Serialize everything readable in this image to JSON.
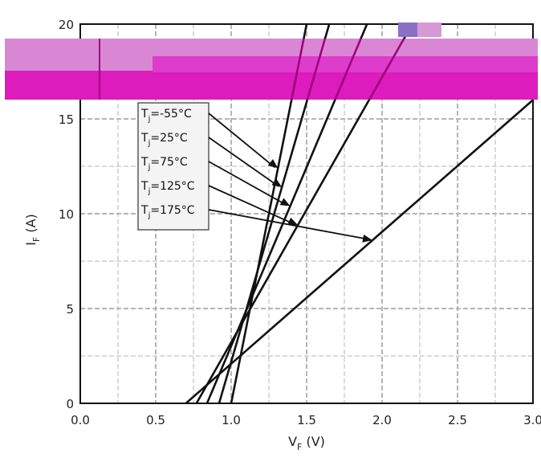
{
  "chart_data": {
    "type": "line",
    "xlabel": "V",
    "xlabel_sub": "F",
    "xlabel_unit": " (V)",
    "ylabel": "I",
    "ylabel_sub": "F",
    "ylabel_unit": " (A)",
    "xlim": [
      0,
      3
    ],
    "ylim": [
      0,
      20
    ],
    "x_ticks": [
      0,
      0.5,
      1.0,
      1.5,
      2.0,
      2.5,
      3.0
    ],
    "x_tick_labels": [
      "0.0",
      "0.5",
      "1.0",
      "1.5",
      "2.0",
      "2.5",
      "3.0"
    ],
    "y_ticks": [
      0,
      5,
      10,
      15,
      20
    ],
    "y_tick_labels": [
      "0",
      "5",
      "10",
      "15",
      "20"
    ],
    "grid": true,
    "series": [
      {
        "name": "Tj=-55°C",
        "label_main": "T",
        "label_sub": "j",
        "label_rest": "=-55°C",
        "x": [
          1.0,
          1.5
        ],
        "y": [
          0,
          20
        ]
      },
      {
        "name": "Tj=25°C",
        "label_main": "T",
        "label_sub": "j",
        "label_rest": "=25°C",
        "x": [
          0.92,
          1.65
        ],
        "y": [
          0,
          20
        ]
      },
      {
        "name": "Tj=75°C",
        "label_main": "T",
        "label_sub": "j",
        "label_rest": "=75°C",
        "x": [
          0.84,
          1.9
        ],
        "y": [
          0,
          20
        ]
      },
      {
        "name": "Tj=125°C",
        "label_main": "T",
        "label_sub": "j",
        "label_rest": "=125°C",
        "x": [
          0.77,
          2.2
        ],
        "y": [
          0,
          20
        ]
      },
      {
        "name": "Tj=175°C",
        "label_main": "T",
        "label_sub": "j",
        "label_rest": "=175°C",
        "x": [
          0.7,
          3.0
        ],
        "y": [
          0,
          16
        ]
      }
    ],
    "colors": {
      "line": "#111111",
      "grid": "#b5b5b5",
      "overlay_light": "#d987d4",
      "overlay_strong": "#dc1cbd",
      "overlay_swatch": "#8a6fc7"
    }
  }
}
